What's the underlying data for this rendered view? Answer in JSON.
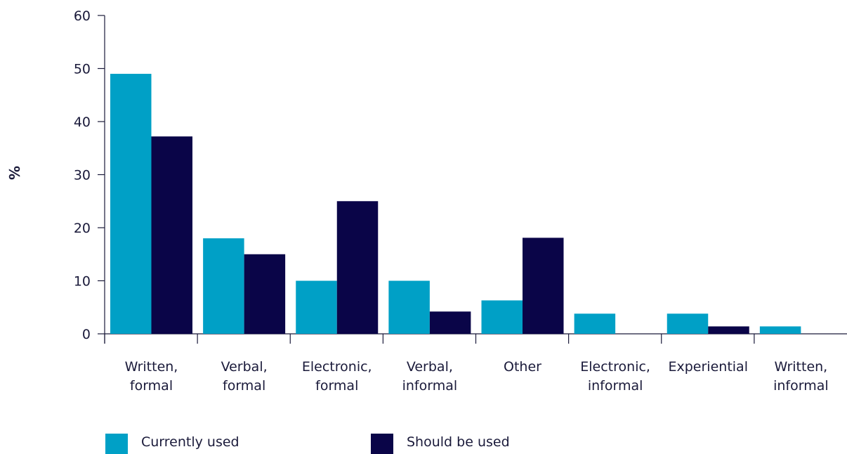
{
  "chart_data": {
    "type": "bar",
    "title": "",
    "xlabel": "",
    "ylabel": "%",
    "ylim": [
      0,
      60
    ],
    "yticks": [
      0,
      10,
      20,
      30,
      40,
      50,
      60
    ],
    "grid": false,
    "legend_position": "bottom-left",
    "categories": [
      [
        "Written,",
        "formal"
      ],
      [
        "Verbal,",
        "formal"
      ],
      [
        "Electronic,",
        "formal"
      ],
      [
        "Verbal,",
        "informal"
      ],
      [
        "Other"
      ],
      [
        "Electronic,",
        "informal"
      ],
      [
        "Experiential"
      ],
      [
        "Written,",
        "informal"
      ]
    ],
    "series": [
      {
        "name": "Currently used",
        "color": "#00a0c6",
        "values": [
          49,
          18,
          10,
          10,
          6.3,
          3.8,
          3.8,
          1.4
        ]
      },
      {
        "name": "Should be used",
        "color": "#0a0548",
        "values": [
          37.2,
          15,
          25,
          4.2,
          18.1,
          0,
          1.4,
          0
        ]
      }
    ]
  }
}
